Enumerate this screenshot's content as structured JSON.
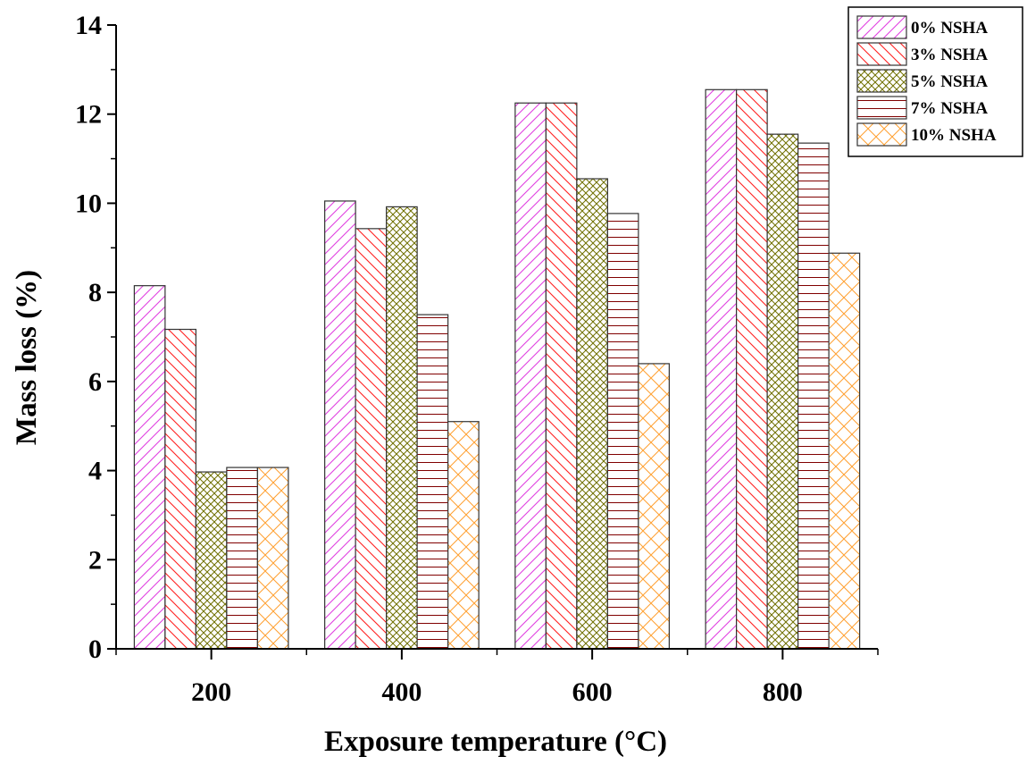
{
  "chart_data": {
    "type": "bar",
    "categories": [
      "200",
      "400",
      "600",
      "800"
    ],
    "series": [
      {
        "name": "0% NSHA",
        "values": [
          8.15,
          10.05,
          12.25,
          12.55
        ],
        "color": "#e040e0",
        "pattern": "diagonal-up"
      },
      {
        "name": "3% NSHA",
        "values": [
          7.17,
          9.43,
          12.25,
          12.55
        ],
        "color": "#ff2020",
        "pattern": "diagonal-down"
      },
      {
        "name": "5% NSHA",
        "values": [
          3.97,
          9.92,
          10.55,
          11.55
        ],
        "color": "#707000",
        "pattern": "crosshatch"
      },
      {
        "name": "7% NSHA",
        "values": [
          4.07,
          7.5,
          9.77,
          11.35
        ],
        "color": "#800000",
        "pattern": "horizontal"
      },
      {
        "name": "10% NSHA",
        "values": [
          4.07,
          5.1,
          6.4,
          8.88
        ],
        "color": "#ffa030",
        "pattern": "crosshatch-x"
      }
    ],
    "title": "",
    "xlabel": "Exposure temperature (°C)",
    "ylabel": "Mass loss (%)",
    "ylim": [
      0,
      14
    ],
    "yticks": [
      "0",
      "2",
      "4",
      "6",
      "8",
      "10",
      "12",
      "14"
    ],
    "grid": false,
    "legend_position": "top-right"
  }
}
